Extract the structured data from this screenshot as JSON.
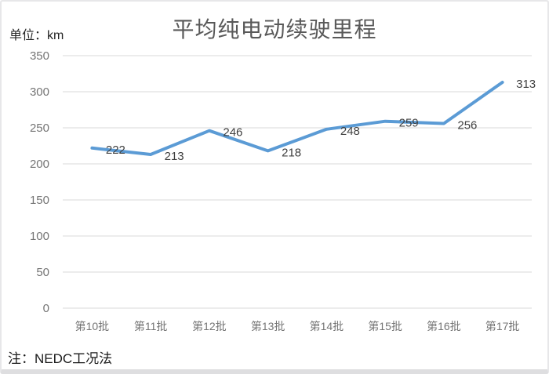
{
  "unit_label": "单位：km",
  "note": "注：NEDC工况法",
  "chart_data": {
    "type": "line",
    "title": "平均纯电动续驶里程",
    "unit": "km",
    "categories": [
      "第10批",
      "第11批",
      "第12批",
      "第13批",
      "第14批",
      "第15批",
      "第16批",
      "第17批"
    ],
    "series": [
      {
        "name": "平均纯电动续驶里程",
        "values": [
          222,
          213,
          246,
          218,
          248,
          259,
          256,
          313
        ]
      }
    ],
    "data_labels": [
      222,
      213,
      246,
      218,
      248,
      259,
      256,
      313
    ],
    "ylim": [
      0,
      350
    ],
    "ytick_step": 50,
    "ytick_labels": [
      "0",
      "50",
      "100",
      "150",
      "200",
      "250",
      "300",
      "350"
    ],
    "grid": true,
    "legend_position": "none",
    "colors": {
      "line": "#5B9BD5",
      "grid": "#D9D9D9",
      "axis_text": "#757575",
      "title_text": "#595959",
      "data_label_text": "#404040",
      "note_text": "#1a1a1a"
    }
  }
}
